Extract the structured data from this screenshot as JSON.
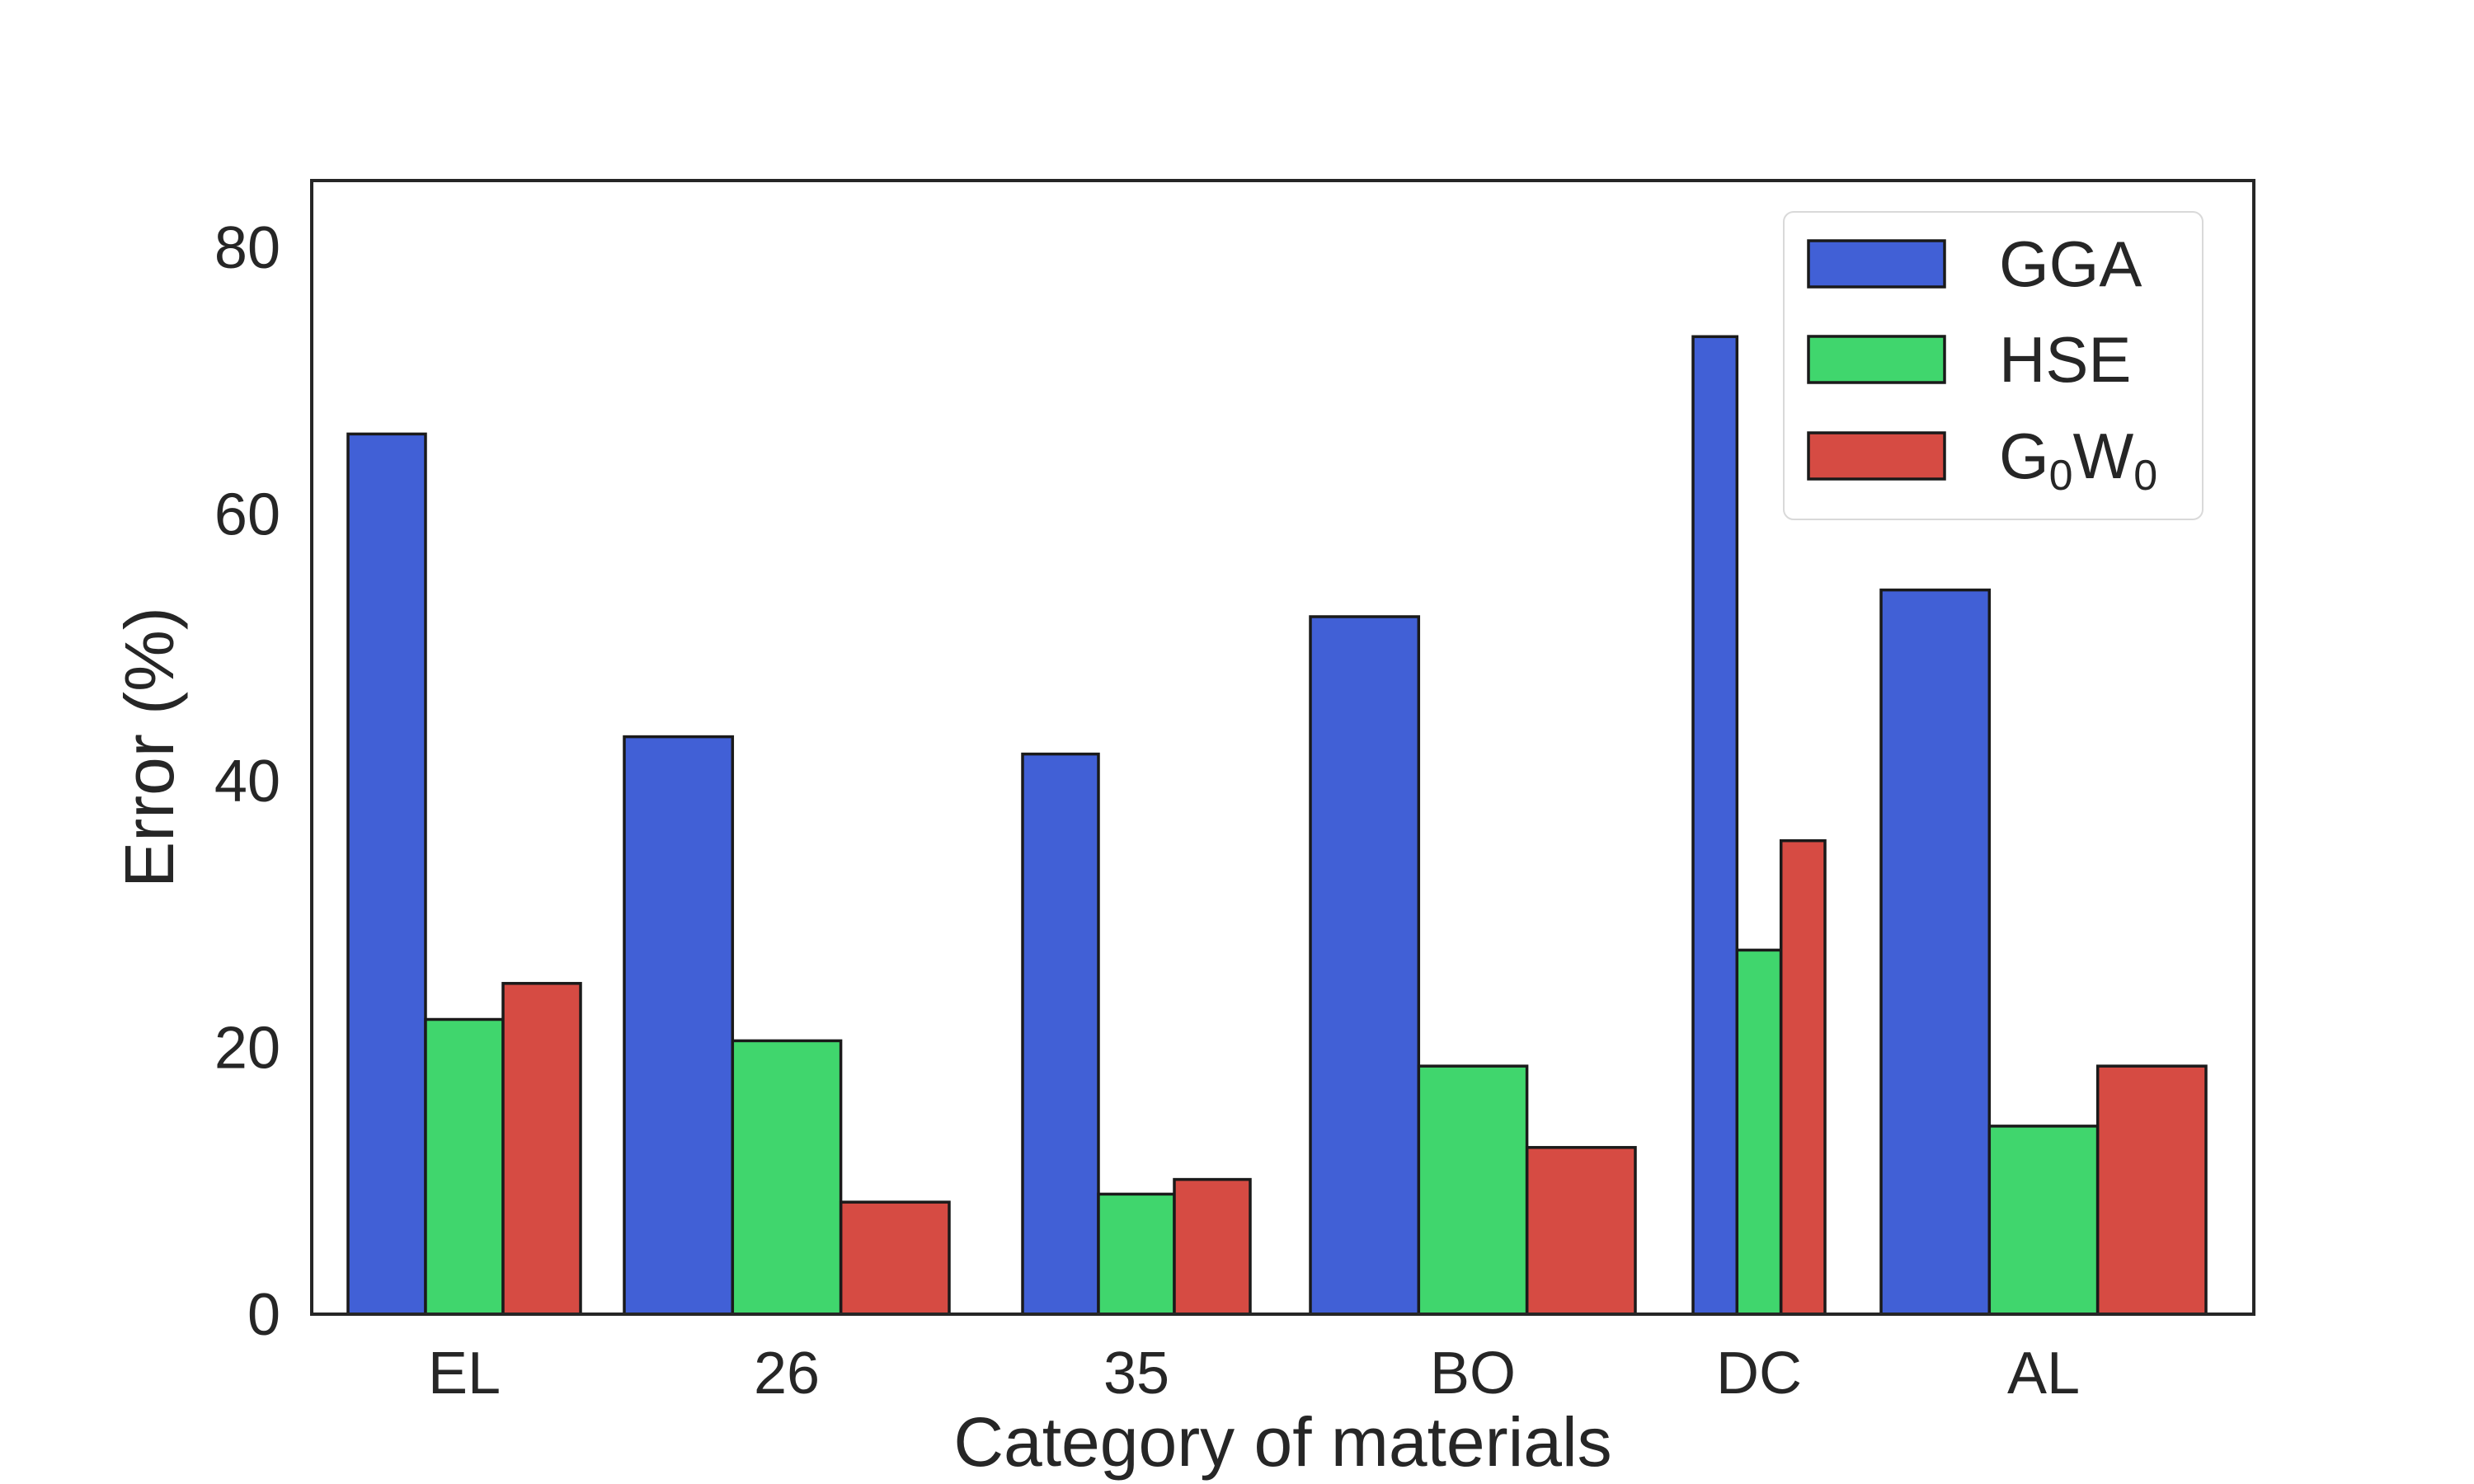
{
  "chart_data": {
    "type": "bar",
    "categories": [
      "EL",
      "26",
      "35",
      "BO",
      "DC",
      "AL"
    ],
    "series": [
      {
        "name": "GGA",
        "values": [
          66,
          43.3,
          42,
          52.3,
          73.3,
          54.3
        ],
        "color": "#4160d6"
      },
      {
        "name": "HSE",
        "values": [
          22.1,
          20.5,
          9,
          18.6,
          27.3,
          14.1
        ],
        "color": "#40d66d"
      },
      {
        "name": "G0W0",
        "values": [
          24.8,
          8.4,
          10.1,
          12.5,
          35.5,
          18.6
        ],
        "color": "#d64b43"
      }
    ],
    "legend": {
      "position": "top-right",
      "entries": [
        {
          "base": "GGA",
          "parts": []
        },
        {
          "base": "HSE",
          "parts": []
        },
        {
          "base": "G",
          "parts": [
            {
              "sub": "0"
            },
            {
              "text": "W"
            },
            {
              "sub": "0"
            }
          ]
        }
      ]
    },
    "title": "",
    "xlabel": "Category of materials",
    "ylabel": "Error (%)",
    "ylim": [
      0,
      85
    ],
    "yticks": [
      0,
      20,
      40,
      60,
      80
    ],
    "grid": false,
    "edge_color": "#1a1a1a"
  }
}
